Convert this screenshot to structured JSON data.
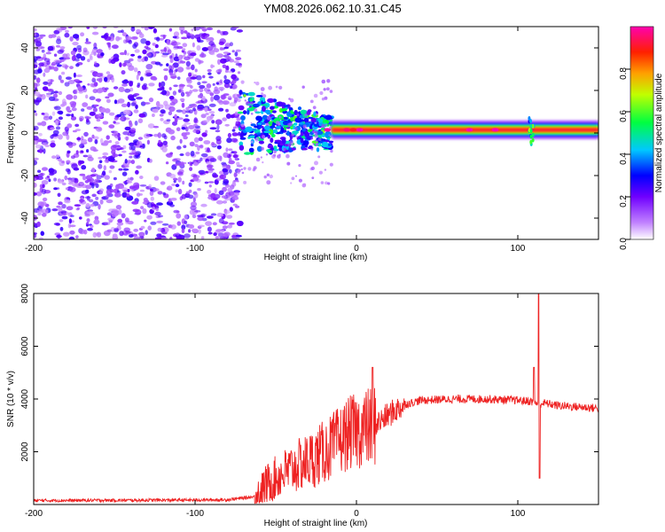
{
  "title": "YM08.2026.062.10.31.C45",
  "chart_data": [
    {
      "type": "heatmap",
      "xlabel": "Height of straight line (km)",
      "ylabel": "Frequency (Hz)",
      "xlim": [
        -200,
        150
      ],
      "ylim": [
        -50,
        50
      ],
      "xticks": [
        -200,
        -100,
        0,
        100
      ],
      "yticks": [
        -40,
        -20,
        0,
        20,
        40
      ],
      "colorbar": {
        "label": "Normalized spectral amplitude",
        "range": [
          0,
          1
        ],
        "ticks": [
          0,
          0.2,
          0.4,
          0.6,
          0.8
        ],
        "tick_labels": [
          "0.0",
          "0.2",
          "0.4",
          "0.6",
          "0.8"
        ],
        "colors": [
          "#ffffff",
          "#a040ff",
          "#0000ff",
          "#00c8ff",
          "#00ff00",
          "#ffff00",
          "#ff8000",
          "#ff0000",
          "#ff00a0"
        ]
      },
      "regions": [
        {
          "name": "noise",
          "x_range": [
            -200,
            -72
          ],
          "f_range": [
            -50,
            50
          ],
          "amplitude": [
            0.05,
            0.25
          ]
        },
        {
          "name": "transition",
          "x_range": [
            -72,
            -15
          ],
          "f_center": 5,
          "f_spread": 15,
          "amplitude": [
            0.2,
            0.6
          ]
        },
        {
          "name": "carrier",
          "x_range": [
            -15,
            150
          ],
          "f_center": 1.5,
          "f_halfwidth": 2,
          "amplitude": [
            0.85,
            1.0
          ]
        }
      ]
    },
    {
      "type": "line",
      "xlabel": "Height of straight line (km)",
      "ylabel": "SNR (10 * v/v)",
      "xlim": [
        -200,
        150
      ],
      "ylim": [
        0,
        8000
      ],
      "xticks": [
        -200,
        -100,
        0,
        100
      ],
      "yticks": [
        2000,
        4000,
        6000,
        8000
      ],
      "color": "#ee2222",
      "series": [
        {
          "name": "SNR",
          "x": [
            -200,
            -150,
            -100,
            -80,
            -63,
            -55,
            -45,
            -35,
            -25,
            -15,
            -5,
            0,
            10,
            20,
            30,
            40,
            60,
            80,
            100,
            110,
            113,
            116,
            125,
            150
          ],
          "y": [
            150,
            160,
            170,
            180,
            300,
            800,
            1200,
            1500,
            1800,
            2200,
            2700,
            2800,
            2950,
            3400,
            3800,
            3950,
            4000,
            4000,
            3950,
            3900,
            3800,
            3850,
            3750,
            3650
          ]
        }
      ],
      "spikes": [
        {
          "x": 10,
          "y": 5200
        },
        {
          "x": 110,
          "y": 5200
        },
        {
          "x": 113,
          "y": 8200
        },
        {
          "x": 113.5,
          "y": 1000
        }
      ]
    }
  ]
}
